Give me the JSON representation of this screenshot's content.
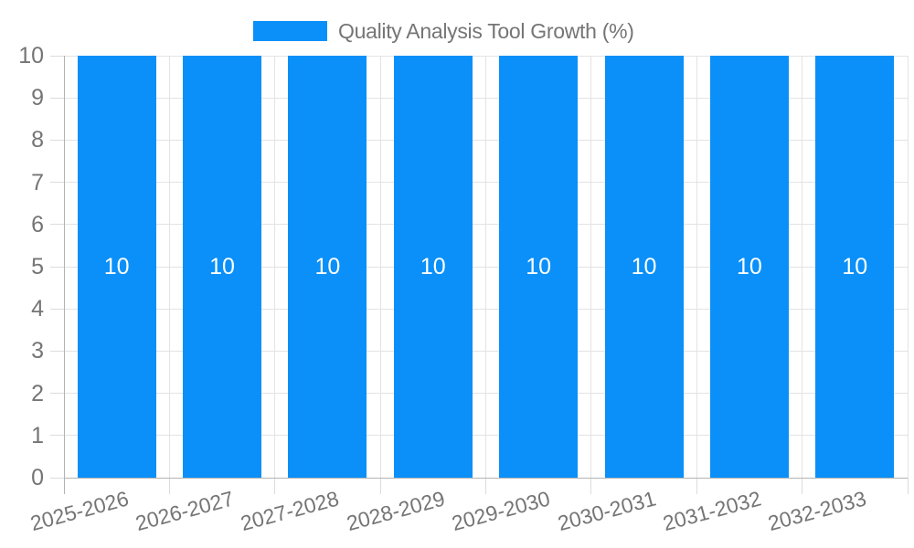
{
  "legend": {
    "label": "Quality Analysis Tool Growth (%)"
  },
  "chart_data": {
    "type": "bar",
    "title": "Quality Analysis Tool Growth (%)",
    "categories": [
      "2025-2026",
      "2026-2027",
      "2027-2028",
      "2028-2029",
      "2029-2030",
      "2030-2031",
      "2031-2032",
      "2032-2033"
    ],
    "values": [
      10,
      10,
      10,
      10,
      10,
      10,
      10,
      10
    ],
    "bar_labels": [
      "10",
      "10",
      "10",
      "10",
      "10",
      "10",
      "10",
      "10"
    ],
    "xlabel": "",
    "ylabel": "",
    "ylim": [
      0,
      10
    ],
    "yticks": [
      0,
      1,
      2,
      3,
      4,
      5,
      6,
      7,
      8,
      9,
      10
    ],
    "ytick_labels": [
      "0",
      "1",
      "2",
      "3",
      "4",
      "5",
      "6",
      "7",
      "8",
      "9",
      "10"
    ],
    "grid": true,
    "legend_position": "top",
    "x_label_rotation_deg": -15,
    "colors": {
      "bar": "#0a90f8",
      "axis_text": "#757575",
      "bar_label_text": "#ffffff",
      "grid": "#e3e3e3",
      "tick": "#dcdcdc",
      "axis_line": "#b3b3b3",
      "background": "#ffffff"
    }
  }
}
